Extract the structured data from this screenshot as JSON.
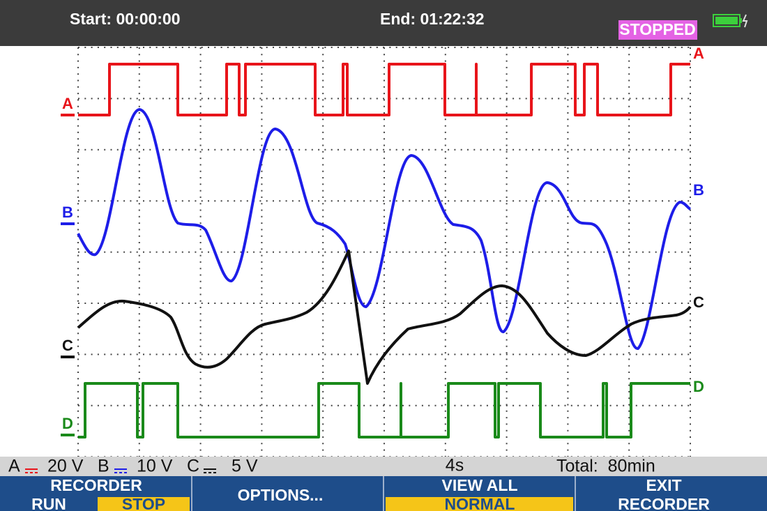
{
  "header": {
    "start": "Start: 00:00:00",
    "end": "End: 01:22:32",
    "status": "STOPPED"
  },
  "channels": [
    {
      "label": "A"
    },
    {
      "label": "B"
    },
    {
      "label": "C"
    },
    {
      "label": "D"
    }
  ],
  "status_bar": {
    "a_label": "A",
    "a_scale": "20 V",
    "b_label": "B",
    "b_scale": "10 V",
    "c_label": "C",
    "c_scale": "5 V",
    "timebase": "4s",
    "total": "Total:  80min"
  },
  "softkeys": [
    {
      "title": "RECORDER",
      "options": [
        "RUN",
        "STOP"
      ]
    },
    {
      "title": "OPTIONS..."
    },
    {
      "title": "VIEW ALL",
      "options": [
        "NORMAL"
      ]
    },
    {
      "title": "EXIT",
      "subtitle": "RECORDER"
    }
  ]
}
